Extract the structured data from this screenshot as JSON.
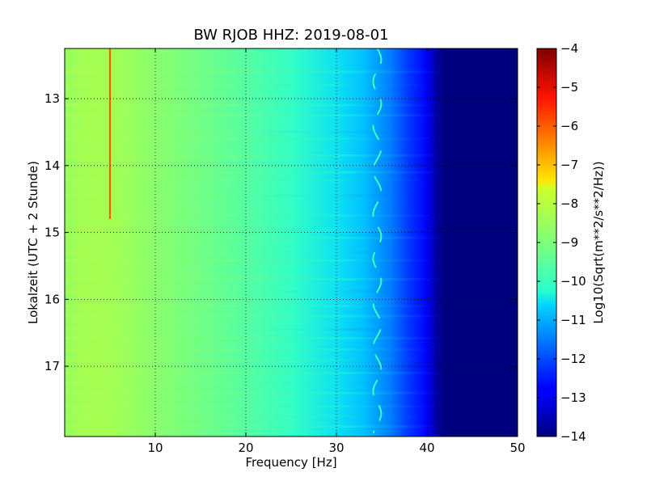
{
  "chart_data": {
    "type": "heatmap",
    "title": "BW RJOB HHZ: 2019-08-01",
    "xlabel": "Frequency [Hz]",
    "ylabel": "Lokalzeit (UTC + 2 Stunde)",
    "xlim": [
      0,
      50
    ],
    "ylim": [
      12.25,
      18.05
    ],
    "y_inverted": true,
    "x_ticks": [
      10,
      20,
      30,
      40,
      50
    ],
    "x_tick_labels": [
      "10",
      "20",
      "30",
      "40",
      "50"
    ],
    "y_ticks": [
      13,
      14,
      15,
      16,
      17
    ],
    "y_tick_labels": [
      "13",
      "14",
      "15",
      "16",
      "17"
    ],
    "grid": true,
    "colormap": "jet",
    "colorbar": {
      "label": "Log10(Sqrt(m**2/s**2/Hz))",
      "range": [
        -14,
        -4
      ],
      "ticks": [
        -4,
        -5,
        -6,
        -7,
        -8,
        -9,
        -10,
        -11,
        -12,
        -13,
        -14
      ],
      "tick_labels": [
        "−4",
        "−5",
        "−6",
        "−7",
        "−8",
        "−9",
        "−10",
        "−11",
        "−12",
        "−13",
        "−14"
      ]
    },
    "spectral_profile": {
      "frequency_hz": [
        0,
        2,
        5,
        10,
        15,
        20,
        25,
        30,
        33,
        36,
        38,
        40,
        41,
        42,
        50
      ],
      "log_amplitude": [
        -8.6,
        -8.3,
        -8.3,
        -8.8,
        -9.2,
        -9.6,
        -10.1,
        -10.5,
        -10.8,
        -11.5,
        -12.2,
        -12.9,
        -13.7,
        -14.0,
        -14.0
      ]
    },
    "features": {
      "line_5hz": {
        "frequency_hz": 5.0,
        "time_range": [
          12.25,
          14.8
        ],
        "log_amplitude": -6.0
      },
      "wandering_line": {
        "frequency_hz": 34.5,
        "log_amplitude": -10.0
      },
      "horizontal_bursts": [
        {
          "time": 12.6,
          "fmax": 42
        },
        {
          "time": 12.8,
          "fmax": 40
        },
        {
          "time": 13.1,
          "fmax": 41
        },
        {
          "time": 13.25,
          "fmax": 42
        },
        {
          "time": 13.5,
          "fmax": 38
        },
        {
          "time": 13.6,
          "fmax": 41
        },
        {
          "time": 13.85,
          "fmax": 42
        },
        {
          "time": 14.1,
          "fmax": 42
        },
        {
          "time": 14.22,
          "fmax": 40
        },
        {
          "time": 14.45,
          "fmax": 38
        },
        {
          "time": 14.75,
          "fmax": 41
        },
        {
          "time": 14.95,
          "fmax": 40
        },
        {
          "time": 15.08,
          "fmax": 42
        },
        {
          "time": 15.3,
          "fmax": 39
        },
        {
          "time": 15.42,
          "fmax": 41
        },
        {
          "time": 15.7,
          "fmax": 42
        },
        {
          "time": 15.88,
          "fmax": 38
        },
        {
          "time": 16.1,
          "fmax": 41
        },
        {
          "time": 16.25,
          "fmax": 42
        },
        {
          "time": 16.45,
          "fmax": 37
        },
        {
          "time": 16.58,
          "fmax": 42
        },
        {
          "time": 16.75,
          "fmax": 41
        },
        {
          "time": 16.9,
          "fmax": 40
        },
        {
          "time": 17.1,
          "fmax": 42
        },
        {
          "time": 17.25,
          "fmax": 39
        },
        {
          "time": 17.4,
          "fmax": 42
        },
        {
          "time": 17.6,
          "fmax": 41
        },
        {
          "time": 17.75,
          "fmax": 40
        },
        {
          "time": 17.9,
          "fmax": 42
        }
      ]
    }
  }
}
